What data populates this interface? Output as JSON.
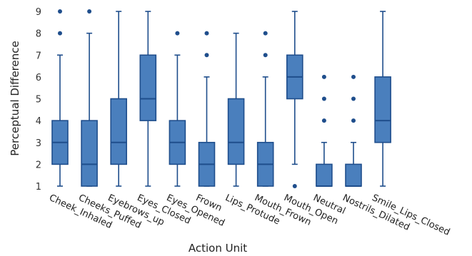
{
  "chart_data": {
    "type": "box",
    "xlabel": "Action Unit",
    "ylabel": "Perceptual Difference",
    "ylim": [
      1,
      9
    ],
    "yticks": [
      1,
      2,
      3,
      4,
      5,
      6,
      7,
      8,
      9
    ],
    "grid": false,
    "colors": {
      "box_fill": "#4a7fbd",
      "box_stroke": "#1f4e8c",
      "outlier": "#1f4e8c"
    },
    "categories": [
      "Cheek_Inhaled",
      "Cheeks_Puffed",
      "Eyebrows_up",
      "Eyes_Closed",
      "Eyes_Opened",
      "Frown",
      "Lips_Protude",
      "Mouth_Frown",
      "Mouth_Open",
      "Neutral",
      "Nostrils_Dilated",
      "Smile_Lips_Closed"
    ],
    "boxes": [
      {
        "min": 1,
        "q1": 2,
        "median": 3,
        "q3": 4,
        "max": 7,
        "outliers": [
          8,
          9
        ]
      },
      {
        "min": 1,
        "q1": 1,
        "median": 2,
        "q3": 4,
        "max": 8,
        "outliers": [
          9
        ]
      },
      {
        "min": 1,
        "q1": 2,
        "median": 3,
        "q3": 5,
        "max": 9,
        "outliers": []
      },
      {
        "min": 1,
        "q1": 4,
        "median": 5,
        "q3": 7,
        "max": 9,
        "outliers": []
      },
      {
        "min": 1,
        "q1": 2,
        "median": 3,
        "q3": 4,
        "max": 7,
        "outliers": [
          8
        ]
      },
      {
        "min": 1,
        "q1": 1,
        "median": 2,
        "q3": 3,
        "max": 6,
        "outliers": [
          7,
          8
        ]
      },
      {
        "min": 1,
        "q1": 2,
        "median": 3,
        "q3": 5,
        "max": 8,
        "outliers": []
      },
      {
        "min": 1,
        "q1": 1,
        "median": 2,
        "q3": 3,
        "max": 6,
        "outliers": [
          7,
          8
        ]
      },
      {
        "min": 2,
        "q1": 5,
        "median": 6,
        "q3": 7,
        "max": 9,
        "outliers": [
          1
        ]
      },
      {
        "min": 1,
        "q1": 1,
        "median": 1,
        "q3": 2,
        "max": 3,
        "outliers": [
          4,
          5,
          6
        ]
      },
      {
        "min": 1,
        "q1": 1,
        "median": 1,
        "q3": 2,
        "max": 3,
        "outliers": [
          4,
          5,
          6
        ]
      },
      {
        "min": 1,
        "q1": 3,
        "median": 4,
        "q3": 6,
        "max": 9,
        "outliers": []
      }
    ]
  }
}
